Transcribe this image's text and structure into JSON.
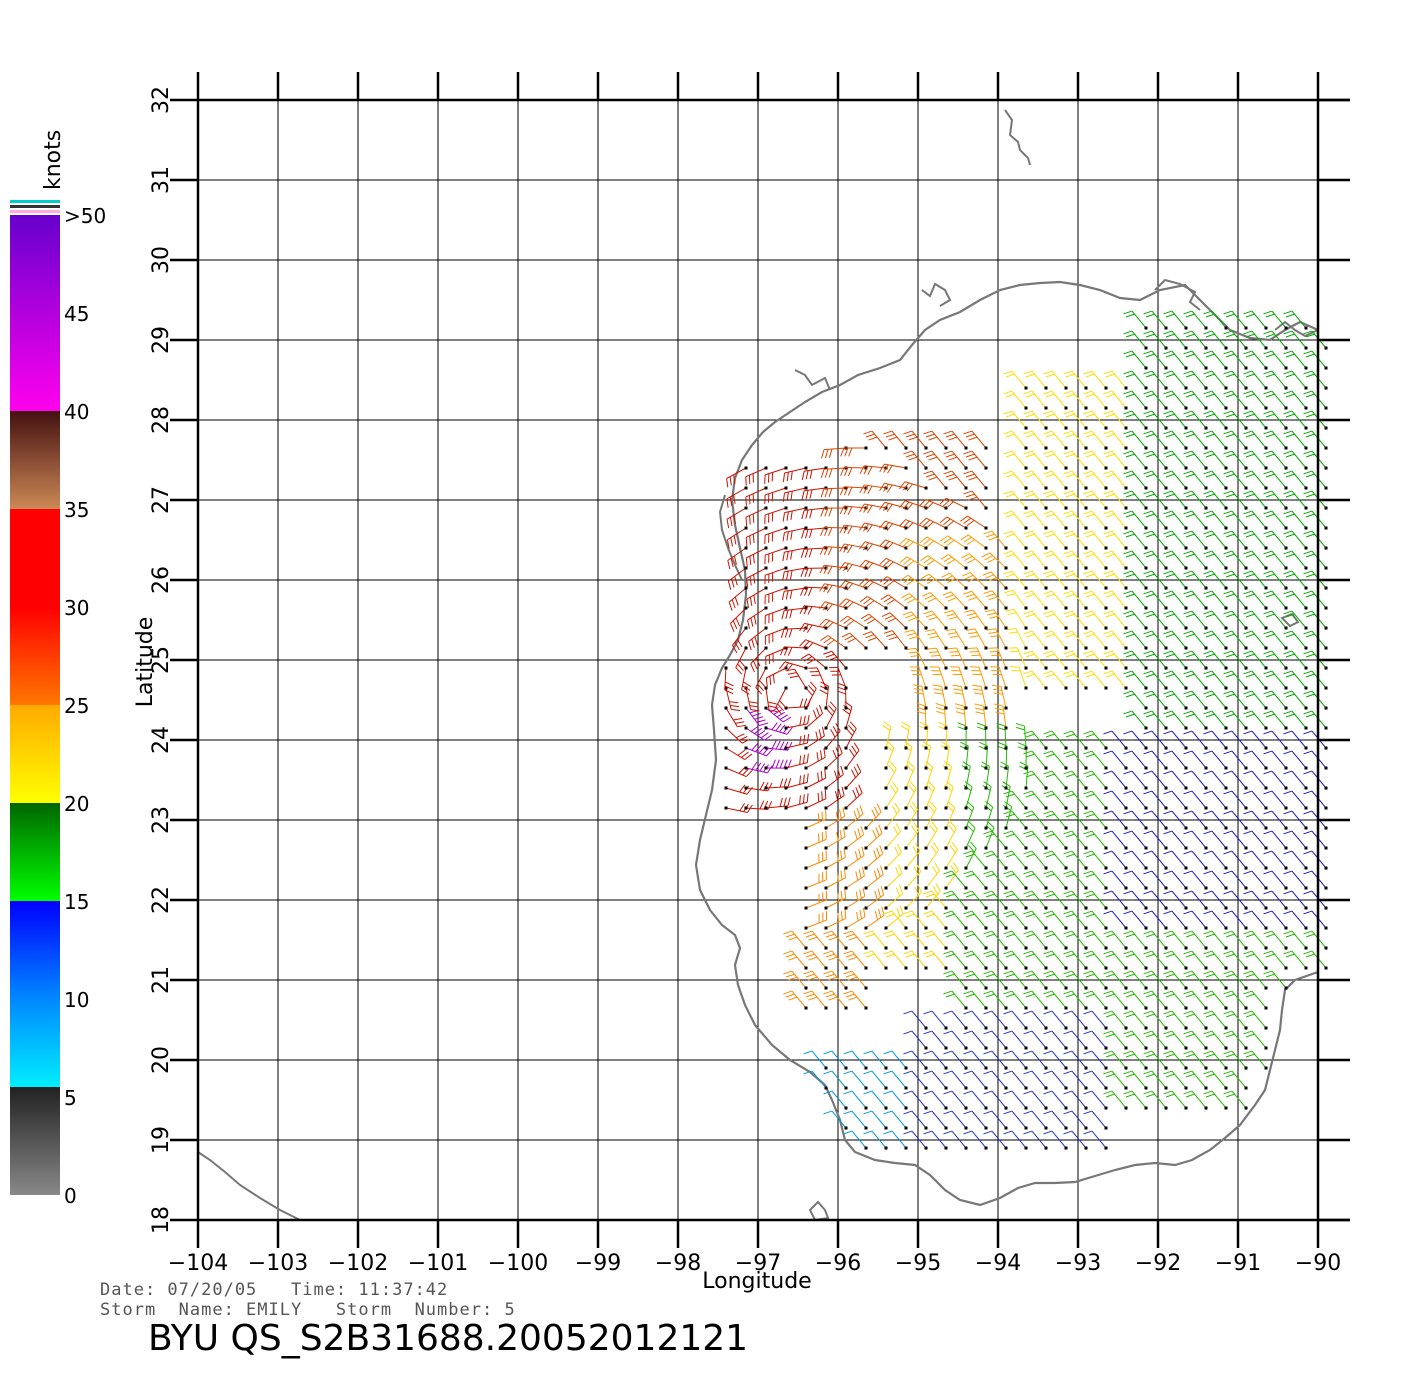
{
  "chart_data": {
    "type": "wind-barb-map",
    "xlabel": "Longitude",
    "ylabel": "Latitude",
    "xlim": [
      -104,
      -90
    ],
    "ylim": [
      18,
      32
    ],
    "x_ticks": [
      "-104",
      "-103",
      "-102",
      "-101",
      "-100",
      "-99",
      "-98",
      "-97",
      "-96",
      "-95",
      "-94",
      "-93",
      "-92",
      "-91",
      "-90"
    ],
    "y_ticks": [
      "18",
      "19",
      "20",
      "21",
      "22",
      "23",
      "24",
      "25",
      "26",
      "27",
      "28",
      "29",
      "30",
      "31",
      "32"
    ],
    "grid": true,
    "colorbar": {
      "unit": "knots",
      "ticks": [
        "0",
        "5",
        "10",
        "15",
        "20",
        "25",
        "30",
        "35",
        "40",
        "45",
        ">50"
      ]
    },
    "wind_regions": [
      {
        "lon_range": [
          -97.6,
          -95.8
        ],
        "lat_range": [
          23.0,
          27.5
        ],
        "speed_knots": 32,
        "color": "#cc1100"
      },
      {
        "lon_range": [
          -97.3,
          -96.9
        ],
        "lat_range": [
          23.5,
          24.6
        ],
        "speed_knots": 45,
        "color": "#aa00cc"
      },
      {
        "lon_range": [
          -96.0,
          -94.0
        ],
        "lat_range": [
          25.0,
          27.8
        ],
        "speed_knots": 29,
        "color": "#dd4400"
      },
      {
        "lon_range": [
          -95.0,
          -93.8
        ],
        "lat_range": [
          23.0,
          26.5
        ],
        "speed_knots": 26,
        "color": "#ff9900"
      },
      {
        "lon_range": [
          -96.6,
          -95.5
        ],
        "lat_range": [
          20.5,
          23.0
        ],
        "speed_knots": 25,
        "color": "#ff8800"
      },
      {
        "lon_range": [
          -95.5,
          -93.5
        ],
        "lat_range": [
          21.0,
          24.0
        ],
        "speed_knots": 22,
        "color": "#ffd400"
      },
      {
        "lon_range": [
          -93.8,
          -92.0
        ],
        "lat_range": [
          24.5,
          28.5
        ],
        "speed_knots": 21,
        "color": "#ffdd00"
      },
      {
        "lon_range": [
          -92.2,
          -89.8
        ],
        "lat_range": [
          24.0,
          29.2
        ],
        "speed_knots": 17,
        "color": "#00aa00"
      },
      {
        "lon_range": [
          -94.6,
          -89.8
        ],
        "lat_range": [
          19.2,
          24.0
        ],
        "speed_knots": 17,
        "color": "#22bb00"
      },
      {
        "lon_range": [
          -92.5,
          -89.8
        ],
        "lat_range": [
          21.5,
          24.0
        ],
        "speed_knots": 12,
        "color": "#1a1acc"
      },
      {
        "lon_range": [
          -95.0,
          -92.5
        ],
        "lat_range": [
          18.8,
          20.5
        ],
        "speed_knots": 12,
        "color": "#2233cc"
      },
      {
        "lon_range": [
          -96.2,
          -95.0
        ],
        "lat_range": [
          18.8,
          20.0
        ],
        "speed_knots": 8,
        "color": "#0099dd"
      }
    ],
    "coastline_color": "#777777"
  },
  "info": {
    "date_line": "Date: 07/20/05   Time: 11:37:42",
    "storm_line": "Storm  Name: EMILY   Storm  Number: 5",
    "title": "BYU  QS_S2B31688.20052012121"
  }
}
